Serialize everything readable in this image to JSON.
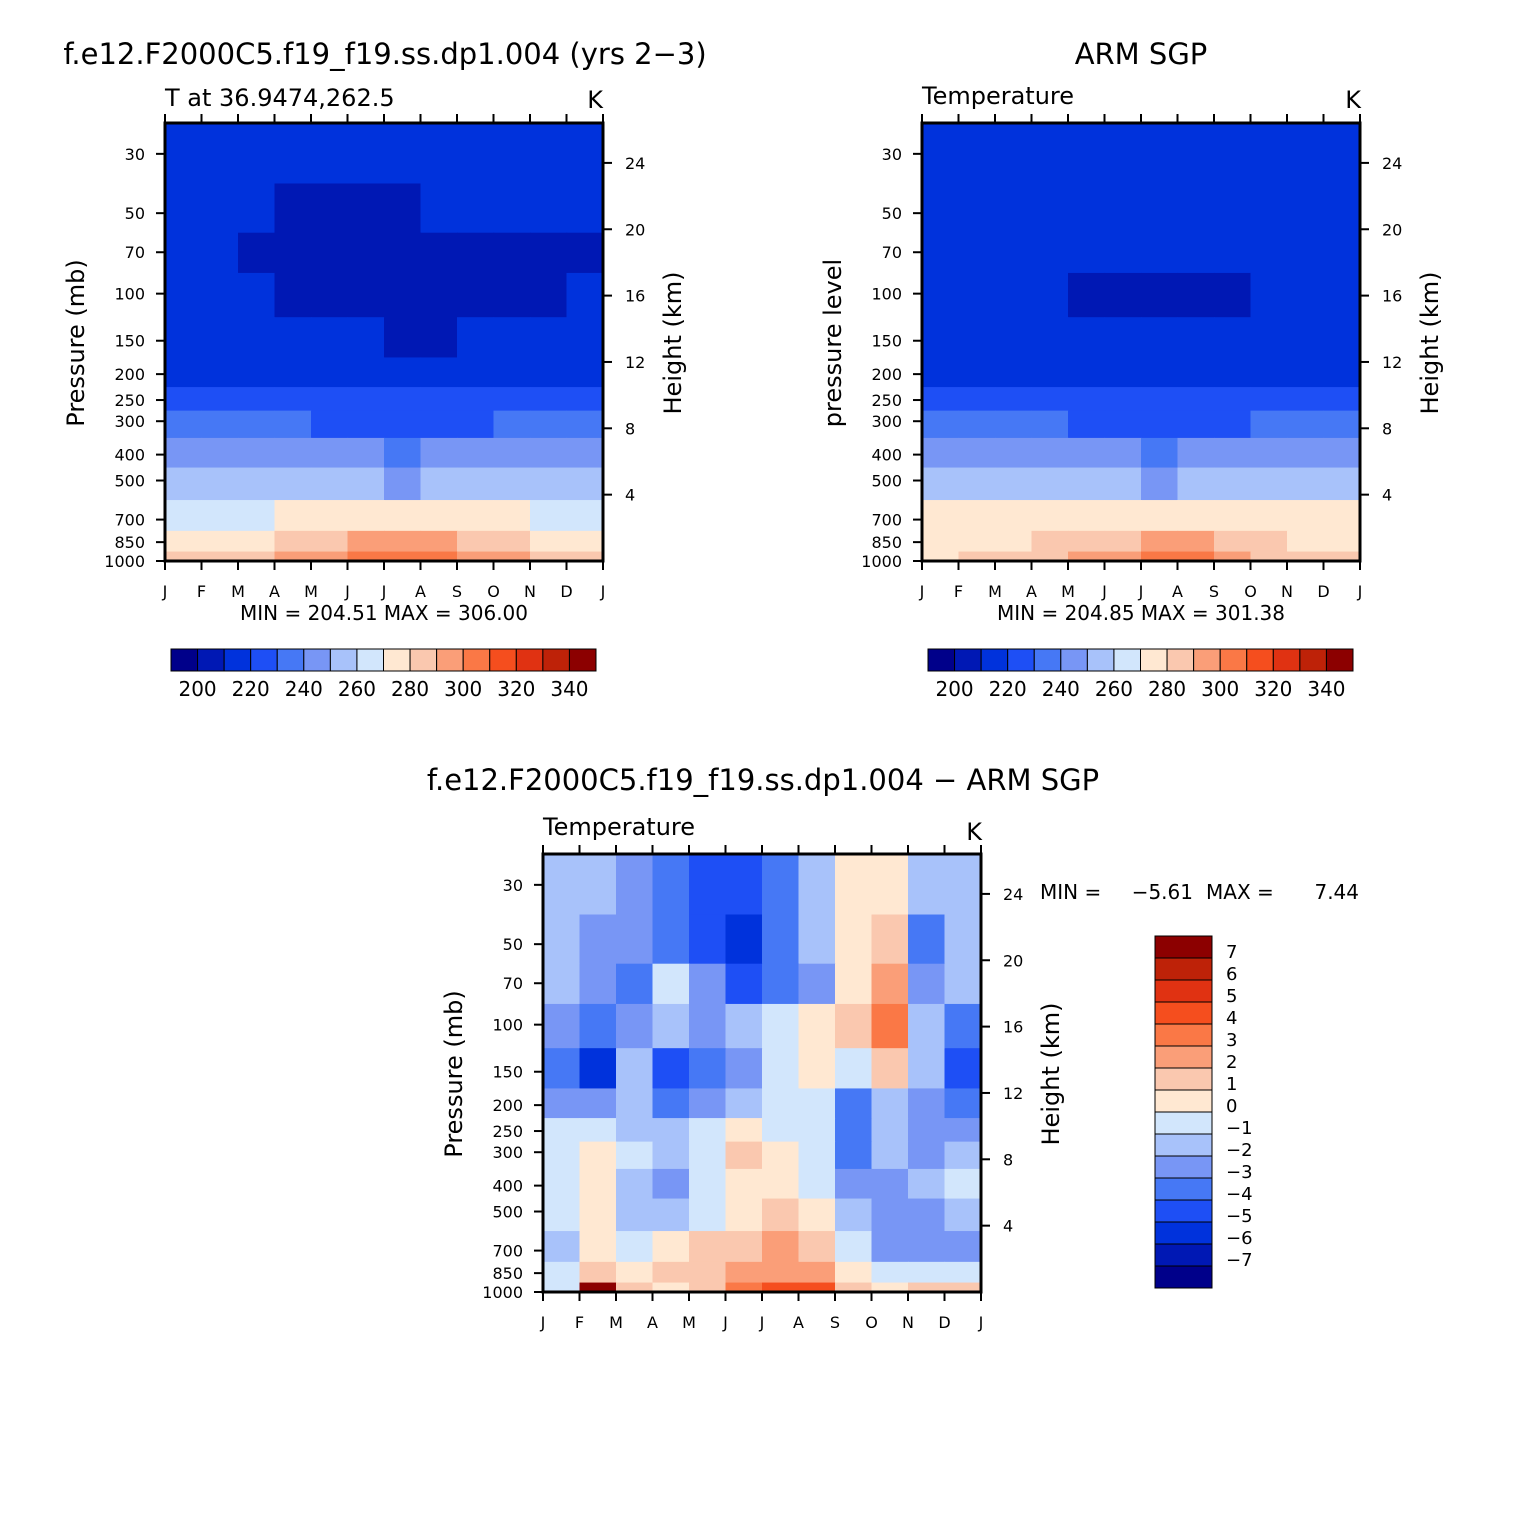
{
  "chart_data": [
    {
      "type": "heatmap",
      "title": "f.e12.F2000C5.f19_f19.ss.dp1.004 (yrs 2−3)",
      "left_string": "T at 36.9474,262.5",
      "right_string": "K",
      "ylabel": "Pressure (mb)",
      "ylabel_right": "Height (km)",
      "x_ticks": [
        "J",
        "F",
        "M",
        "A",
        "M",
        "J",
        "J",
        "A",
        "S",
        "O",
        "N",
        "D",
        "J"
      ],
      "y_ticks": [
        30,
        50,
        70,
        100,
        150,
        200,
        250,
        300,
        400,
        500,
        700,
        850,
        1000
      ],
      "y_ticks_right": [
        24,
        20,
        16,
        12,
        8,
        4
      ],
      "ylim": [
        1000,
        23
      ],
      "stats": "MIN = 204.51 MAX = 306.00",
      "colorbar": {
        "tick_labels": [
          "200",
          "220",
          "240",
          "260",
          "280",
          "300",
          "320",
          "340"
        ],
        "levels": [
          190,
          200,
          210,
          220,
          230,
          240,
          250,
          260,
          270,
          280,
          290,
          300,
          310,
          320,
          330,
          340,
          350
        ]
      },
      "values_by_month": {
        "pressure_levels": [
          30,
          50,
          70,
          100,
          150,
          200,
          250,
          300,
          400,
          500,
          700,
          850,
          1000
        ],
        "months": [
          "Jan",
          "Feb",
          "Mar",
          "Apr",
          "May",
          "Jun",
          "Jul",
          "Aug",
          "Sep",
          "Oct",
          "Nov",
          "Dec"
        ],
        "temperature": [
          [
            213,
            212,
            210,
            210,
            210,
            210,
            212,
            212,
            213,
            214,
            213,
            214
          ],
          [
            211,
            210,
            210,
            209,
            208,
            208,
            209,
            210,
            210,
            212,
            211,
            210
          ],
          [
            210,
            210,
            208,
            207,
            207,
            207,
            208,
            208,
            209,
            209,
            209,
            209
          ],
          [
            211,
            212,
            211,
            209,
            208,
            207,
            207,
            208,
            208,
            209,
            209,
            210
          ],
          [
            214,
            214,
            213,
            212,
            211,
            210,
            209,
            209,
            210,
            211,
            213,
            214
          ],
          [
            219,
            219,
            218,
            217,
            216,
            215,
            214,
            215,
            216,
            217,
            218,
            219
          ],
          [
            226,
            225,
            225,
            224,
            222,
            221,
            220,
            221,
            222,
            224,
            225,
            226
          ],
          [
            232,
            232,
            232,
            231,
            229,
            228,
            227,
            228,
            229,
            231,
            232,
            233
          ],
          [
            245,
            245,
            244,
            243,
            241,
            240,
            239,
            240,
            242,
            243,
            245,
            246
          ],
          [
            256,
            255,
            255,
            253,
            251,
            250,
            249,
            250,
            252,
            253,
            255,
            256
          ],
          [
            268,
            268,
            269,
            271,
            274,
            276,
            277,
            277,
            274,
            271,
            268,
            267
          ],
          [
            275,
            275,
            278,
            282,
            287,
            291,
            294,
            293,
            288,
            283,
            278,
            276
          ],
          [
            280,
            281,
            285,
            290,
            296,
            301,
            305,
            304,
            298,
            291,
            285,
            281
          ]
        ]
      }
    },
    {
      "type": "heatmap",
      "title": "ARM SGP",
      "left_string": "Temperature",
      "right_string": "K",
      "ylabel": "pressure level",
      "ylabel_right": "Height (km)",
      "x_ticks": [
        "J",
        "F",
        "M",
        "A",
        "M",
        "J",
        "J",
        "A",
        "S",
        "O",
        "N",
        "D",
        "J"
      ],
      "y_ticks": [
        30,
        50,
        70,
        100,
        150,
        200,
        250,
        300,
        400,
        500,
        700,
        850,
        1000
      ],
      "y_ticks_right": [
        24,
        20,
        16,
        12,
        8,
        4
      ],
      "ylim": [
        1000,
        23
      ],
      "stats": "MIN = 204.85 MAX = 301.38",
      "colorbar": {
        "tick_labels": [
          "200",
          "220",
          "240",
          "260",
          "280",
          "300",
          "320",
          "340"
        ],
        "levels": [
          190,
          200,
          210,
          220,
          230,
          240,
          250,
          260,
          270,
          280,
          290,
          300,
          310,
          320,
          330,
          340,
          350
        ]
      },
      "values_by_month": {
        "pressure_levels": [
          30,
          50,
          70,
          100,
          150,
          200,
          250,
          300,
          400,
          500,
          700,
          850,
          1000
        ],
        "months": [
          "Jan",
          "Feb",
          "Mar",
          "Apr",
          "May",
          "Jun",
          "Jul",
          "Aug",
          "Sep",
          "Oct",
          "Nov",
          "Dec"
        ],
        "temperature": [
          [
            216,
            215,
            215,
            215,
            216,
            217,
            219,
            219,
            218,
            217,
            216,
            216
          ],
          [
            211,
            212,
            213,
            213,
            213,
            214,
            215,
            215,
            214,
            213,
            212,
            211
          ],
          [
            210,
            211,
            211,
            210,
            210,
            210,
            211,
            211,
            211,
            211,
            210,
            210
          ],
          [
            212,
            212,
            211,
            210,
            209,
            208,
            208,
            209,
            209,
            210,
            211,
            211
          ],
          [
            215,
            215,
            214,
            213,
            212,
            211,
            210,
            210,
            211,
            212,
            213,
            214
          ],
          [
            219,
            219,
            218,
            217,
            216,
            215,
            215,
            215,
            216,
            217,
            218,
            219
          ],
          [
            226,
            226,
            225,
            224,
            222,
            221,
            220,
            221,
            222,
            224,
            225,
            226
          ],
          [
            233,
            233,
            232,
            231,
            229,
            228,
            227,
            228,
            229,
            231,
            232,
            233
          ],
          [
            245,
            245,
            244,
            243,
            241,
            240,
            239,
            240,
            242,
            243,
            245,
            246
          ],
          [
            256,
            256,
            255,
            253,
            251,
            250,
            249,
            250,
            252,
            253,
            255,
            256
          ],
          [
            270,
            270,
            271,
            272,
            274,
            276,
            277,
            277,
            275,
            273,
            271,
            270
          ],
          [
            276,
            276,
            279,
            282,
            285,
            288,
            290,
            290,
            287,
            283,
            279,
            277
          ],
          [
            279,
            280,
            283,
            287,
            293,
            297,
            301,
            300,
            295,
            289,
            284,
            280
          ]
        ]
      }
    },
    {
      "type": "heatmap",
      "title": "f.e12.F2000C5.f19_f19.ss.dp1.004 − ARM SGP",
      "left_string": "Temperature",
      "right_string": "K",
      "ylabel": "Pressure (mb)",
      "ylabel_right": "Height (km)",
      "x_ticks": [
        "J",
        "F",
        "M",
        "A",
        "M",
        "J",
        "J",
        "A",
        "S",
        "O",
        "N",
        "D",
        "J"
      ],
      "y_ticks": [
        30,
        50,
        70,
        100,
        150,
        200,
        250,
        300,
        400,
        500,
        700,
        850,
        1000
      ],
      "y_ticks_right": [
        24,
        20,
        16,
        12,
        8,
        4
      ],
      "ylim": [
        1000,
        23
      ],
      "stats": {
        "min_label": "MIN =",
        "min": "−5.61",
        "max_label": "MAX =",
        "max": "7.44"
      },
      "colorbar": {
        "orientation": "vertical",
        "tick_labels": [
          "7",
          "6",
          "5",
          "4",
          "3",
          "2",
          "1",
          "0",
          "−1",
          "−2",
          "−3",
          "−4",
          "−5",
          "−6",
          "−7"
        ],
        "levels": [
          -8,
          -7,
          -6,
          -5,
          -4,
          -3,
          -2,
          -1,
          0,
          1,
          2,
          3,
          4,
          5,
          6,
          7,
          8
        ]
      },
      "values_by_month": {
        "pressure_levels": [
          30,
          50,
          70,
          100,
          150,
          200,
          250,
          300,
          400,
          500,
          700,
          850,
          1000
        ],
        "months": [
          "Jan",
          "Feb",
          "Mar",
          "Apr",
          "May",
          "Jun",
          "Jul",
          "Aug",
          "Sep",
          "Oct",
          "Nov",
          "Dec"
        ],
        "difference": [
          [
            -1.5,
            -1.5,
            -2.5,
            -4,
            -4.5,
            -5,
            -3.5,
            -1.5,
            0.5,
            0.5,
            -2,
            -1.5
          ],
          [
            -1.5,
            -2.5,
            -3,
            -3.5,
            -5,
            -5.5,
            -4,
            -2,
            0,
            1,
            -4,
            -1.5
          ],
          [
            -1.5,
            -3,
            -3.5,
            -0.5,
            -3,
            -4.5,
            -3.5,
            -2.5,
            0,
            2.5,
            -2.5,
            -1.5
          ],
          [
            -3,
            -4,
            -2.5,
            -2,
            -2.5,
            -2,
            -1,
            0.5,
            1,
            3.5,
            -1.5,
            -3.5
          ],
          [
            -3.5,
            -5.5,
            -2,
            -4.5,
            -4,
            -2.5,
            -0.5,
            0.5,
            -1,
            1.5,
            -2,
            -5
          ],
          [
            -2.5,
            -3,
            -2,
            -3.5,
            -3,
            -1.5,
            -0.5,
            -0.5,
            -4,
            -1.5,
            -2.5,
            -3.5
          ],
          [
            -0.5,
            -1,
            -1.5,
            -1.5,
            -0.5,
            0.5,
            -0.5,
            -0.5,
            -4,
            -2,
            -3,
            -2.5
          ],
          [
            -0.5,
            0.5,
            -1,
            -1.5,
            -0.5,
            1.5,
            0.5,
            -0.5,
            -3.5,
            -2,
            -2.5,
            -1.5
          ],
          [
            -0.5,
            0.5,
            -1.5,
            -2.5,
            -1,
            0.5,
            0.5,
            -0.5,
            -3,
            -3,
            -2,
            -0.5
          ],
          [
            -1,
            0.5,
            -1.5,
            -2,
            -0.5,
            0.5,
            1,
            0.5,
            -2,
            -3,
            -3,
            -2
          ],
          [
            -1.5,
            0.5,
            -0.5,
            0.5,
            1,
            1.5,
            2,
            1.5,
            -0.5,
            -2.5,
            -3,
            -3
          ],
          [
            -1,
            1.5,
            0.5,
            1,
            1.5,
            2,
            2.5,
            2.5,
            0.5,
            -0.5,
            -1,
            -1
          ],
          [
            -0.5,
            7.4,
            1,
            0.5,
            1.5,
            3.5,
            4.5,
            4,
            1,
            0.5,
            1,
            1.5
          ]
        ]
      }
    }
  ]
}
